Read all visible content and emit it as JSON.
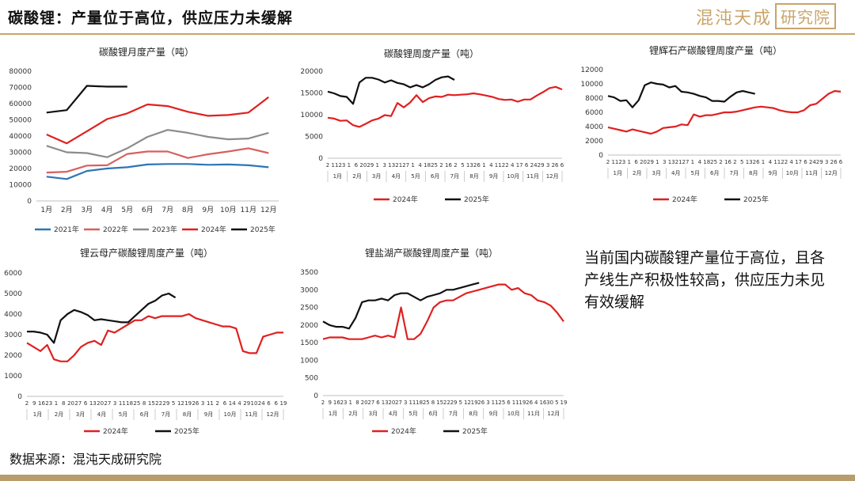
{
  "header": {
    "title": "碳酸锂：产量位于高位，供应压力未缓解",
    "logo_main": "混沌天成",
    "logo_box": "研究院"
  },
  "commentary": "当前国内碳酸锂产量位于高位，且各产线生产积极性较高，供应压力未见有效缓解",
  "source": "数据来源：混沌天成研究院",
  "colors": {
    "red": "#e02020",
    "black": "#111111",
    "blue": "#2e75b6",
    "salmon": "#d95f5f",
    "gray": "#8c8c8c",
    "accent": "#c8a56a"
  },
  "chart_data": [
    {
      "id": "monthly",
      "type": "line",
      "title": "碳酸锂月度产量（吨）",
      "categories": [
        "1月",
        "2月",
        "3月",
        "4月",
        "5月",
        "6月",
        "7月",
        "8月",
        "9月",
        "10月",
        "11月",
        "12月"
      ],
      "ylim": [
        0,
        80000
      ],
      "yticks": [
        0,
        10000,
        20000,
        30000,
        40000,
        50000,
        60000,
        70000,
        80000
      ],
      "legend_position": "bottom",
      "series": [
        {
          "name": "2021年",
          "color": "#2e75b6",
          "values": [
            15000,
            13500,
            18500,
            20000,
            20800,
            22500,
            22800,
            22800,
            22300,
            22500,
            22000,
            20800
          ]
        },
        {
          "name": "2022年",
          "color": "#d95f5f",
          "values": [
            17500,
            18000,
            21800,
            22000,
            29000,
            30500,
            30500,
            26500,
            28800,
            30500,
            32500,
            29500
          ]
        },
        {
          "name": "2023年",
          "color": "#8c8c8c",
          "values": [
            34000,
            30000,
            29500,
            27000,
            32500,
            39500,
            43800,
            42000,
            39500,
            38000,
            38500,
            42000
          ]
        },
        {
          "name": "2024年",
          "color": "#e02020",
          "values": [
            41000,
            35500,
            43000,
            50500,
            54000,
            59500,
            58500,
            55000,
            52500,
            53000,
            54500,
            64000
          ]
        },
        {
          "name": "2025年",
          "color": "#111111",
          "values": [
            54500,
            56000,
            71000,
            70500,
            70500,
            null,
            null,
            null,
            null,
            null,
            null,
            null
          ]
        }
      ]
    },
    {
      "id": "weekly-total",
      "type": "line",
      "title": "碳酸锂周度产量（吨）",
      "ylim": [
        0,
        20000
      ],
      "yticks": [
        0,
        5000,
        10000,
        15000,
        20000
      ],
      "x_tick_labels": [
        "2",
        "11",
        "23",
        "1",
        "6",
        "20",
        "29",
        "1",
        "3",
        "13",
        "21",
        "27",
        "1",
        "4",
        "18",
        "25",
        "2",
        "16",
        "2",
        "5",
        "13",
        "26",
        "1",
        "4",
        "11",
        "22",
        "4",
        "17",
        "6",
        "24",
        "29",
        "3",
        "26",
        "6"
      ],
      "month_labels": [
        "1月",
        "2月",
        "3月",
        "4月",
        "5月",
        "6月",
        "7月",
        "8月",
        "9月",
        "10月",
        "11月",
        "12月"
      ],
      "legend_position": "bottom",
      "series": [
        {
          "name": "2024年",
          "color": "#e02020",
          "values": [
            9300,
            9100,
            8600,
            8700,
            7600,
            7200,
            7900,
            8700,
            9100,
            9900,
            9700,
            12700,
            11700,
            12800,
            14500,
            12900,
            13800,
            14200,
            14100,
            14600,
            14500,
            14600,
            14700,
            14900,
            14700,
            14400,
            14100,
            13600,
            13400,
            13500,
            13000,
            13500,
            13500,
            14400,
            15200,
            16100,
            16400,
            15800
          ]
        },
        {
          "name": "2025年",
          "color": "#111111",
          "values": [
            15300,
            14900,
            14300,
            14100,
            12500,
            17400,
            18500,
            18500,
            18100,
            17400,
            17900,
            17300,
            17000,
            16300,
            16800,
            16300,
            17000,
            18000,
            18600,
            18800,
            18000,
            null,
            null,
            null,
            null,
            null,
            null,
            null,
            null,
            null,
            null,
            null,
            null,
            null,
            null,
            null,
            null,
            null
          ]
        }
      ]
    },
    {
      "id": "weekly-spodumene",
      "type": "line",
      "title": "锂辉石产碳酸锂周度产量（吨）",
      "ylim": [
        0,
        12000
      ],
      "yticks": [
        0,
        2000,
        4000,
        6000,
        8000,
        10000,
        12000
      ],
      "x_tick_labels": [
        "2",
        "11",
        "23",
        "1",
        "6",
        "20",
        "29",
        "1",
        "3",
        "13",
        "21",
        "27",
        "1",
        "4",
        "18",
        "25",
        "2",
        "16",
        "2",
        "5",
        "13",
        "26",
        "1",
        "4",
        "11",
        "22",
        "4",
        "17",
        "6",
        "24",
        "29",
        "3",
        "26",
        "6"
      ],
      "month_labels": [
        "1月",
        "2月",
        "3月",
        "4月",
        "5月",
        "6月",
        "7月",
        "8月",
        "9月",
        "10月",
        "11月",
        "12月"
      ],
      "legend_position": "bottom",
      "series": [
        {
          "name": "2024年",
          "color": "#e02020",
          "values": [
            3900,
            3700,
            3500,
            3300,
            3600,
            3400,
            3200,
            3000,
            3300,
            3800,
            3900,
            4000,
            4300,
            4200,
            5700,
            5400,
            5600,
            5600,
            5800,
            6000,
            6000,
            6100,
            6300,
            6500,
            6700,
            6800,
            6700,
            6600,
            6300,
            6100,
            6000,
            6000,
            6300,
            7000,
            7200,
            7900,
            8600,
            9000,
            8900
          ]
        },
        {
          "name": "2025年",
          "color": "#111111",
          "values": [
            8300,
            8100,
            7600,
            7700,
            6700,
            7700,
            9800,
            10200,
            10000,
            9900,
            9500,
            9700,
            8900,
            8800,
            8600,
            8300,
            8100,
            7600,
            7600,
            7500,
            8200,
            8800,
            9000,
            8800,
            8600,
            null,
            null,
            null,
            null,
            null,
            null,
            null,
            null,
            null,
            null,
            null,
            null,
            null,
            null
          ]
        }
      ]
    },
    {
      "id": "weekly-lepidolite",
      "type": "line",
      "title": "锂云母产碳酸锂周度产量（吨）",
      "ylim": [
        0,
        6000
      ],
      "yticks": [
        0,
        1000,
        2000,
        3000,
        4000,
        5000,
        6000
      ],
      "x_tick_labels": [
        "2",
        "9",
        "16",
        "23",
        "1",
        "8",
        "20",
        "27",
        "6",
        "13",
        "20",
        "27",
        "3",
        "11",
        "18",
        "25",
        "8",
        "15",
        "22",
        "29",
        "5",
        "12",
        "19",
        "26",
        "3",
        "11",
        "2",
        "6",
        "14",
        "4",
        "29",
        "10",
        "24",
        "6",
        "6",
        "19"
      ],
      "month_labels": [
        "1月",
        "2月",
        "3月",
        "4月",
        "5月",
        "6月",
        "7月",
        "8月",
        "9月",
        "10月",
        "11月",
        "12月"
      ],
      "legend_position": "bottom",
      "series": [
        {
          "name": "2024年",
          "color": "#e02020",
          "values": [
            2600,
            2400,
            2200,
            2500,
            1800,
            1700,
            1700,
            2000,
            2400,
            2600,
            2700,
            2500,
            3200,
            3100,
            3300,
            3500,
            3700,
            3700,
            3900,
            3800,
            3900,
            3900,
            3900,
            3900,
            4000,
            3800,
            3700,
            3600,
            3500,
            3400,
            3400,
            3300,
            2200,
            2100,
            2100,
            2900,
            3000,
            3100,
            3100
          ]
        },
        {
          "name": "2025年",
          "color": "#111111",
          "values": [
            3150,
            3150,
            3100,
            3000,
            2600,
            3700,
            4000,
            4200,
            4100,
            3950,
            3700,
            3750,
            3700,
            3650,
            3600,
            3600,
            3900,
            4200,
            4500,
            4650,
            4900,
            5000,
            4800,
            null,
            null,
            null,
            null,
            null,
            null,
            null,
            null,
            null,
            null,
            null,
            null,
            null,
            null,
            null,
            null
          ]
        }
      ]
    },
    {
      "id": "weekly-brine",
      "type": "line",
      "title": "锂盐湖产碳酸锂周度产量（吨）",
      "ylim": [
        0,
        3500
      ],
      "yticks": [
        0,
        500,
        1000,
        1500,
        2000,
        2500,
        3000,
        3500
      ],
      "x_tick_labels": [
        "2",
        "9",
        "16",
        "23",
        "1",
        "8",
        "20",
        "27",
        "6",
        "13",
        "20",
        "27",
        "3",
        "11",
        "18",
        "25",
        "8",
        "15",
        "22",
        "29",
        "5",
        "12",
        "19",
        "26",
        "3",
        "11",
        "25",
        "6",
        "11",
        "19",
        "26",
        "4",
        "16",
        "30",
        "5",
        "19"
      ],
      "month_labels": [
        "1月",
        "2月",
        "3月",
        "4月",
        "5月",
        "6月",
        "7月",
        "8月",
        "9月",
        "10月",
        "11月",
        "12月"
      ],
      "legend_position": "bottom",
      "series": [
        {
          "name": "2024年",
          "color": "#e02020",
          "values": [
            1600,
            1650,
            1650,
            1650,
            1600,
            1600,
            1600,
            1650,
            1700,
            1650,
            1700,
            1650,
            2500,
            1600,
            1600,
            1750,
            2100,
            2500,
            2650,
            2700,
            2700,
            2800,
            2900,
            2950,
            3000,
            3050,
            3100,
            3150,
            3150,
            3000,
            3050,
            2900,
            2850,
            2700,
            2650,
            2550,
            2350,
            2100
          ]
        },
        {
          "name": "2025年",
          "color": "#111111",
          "values": [
            2100,
            2000,
            1950,
            1950,
            1900,
            2200,
            2650,
            2700,
            2700,
            2750,
            2700,
            2850,
            2900,
            2900,
            2800,
            2700,
            2800,
            2850,
            2900,
            3000,
            3000,
            3050,
            3100,
            3150,
            3200,
            null,
            null,
            null,
            null,
            null,
            null,
            null,
            null,
            null,
            null,
            null,
            null,
            null
          ]
        }
      ]
    }
  ]
}
